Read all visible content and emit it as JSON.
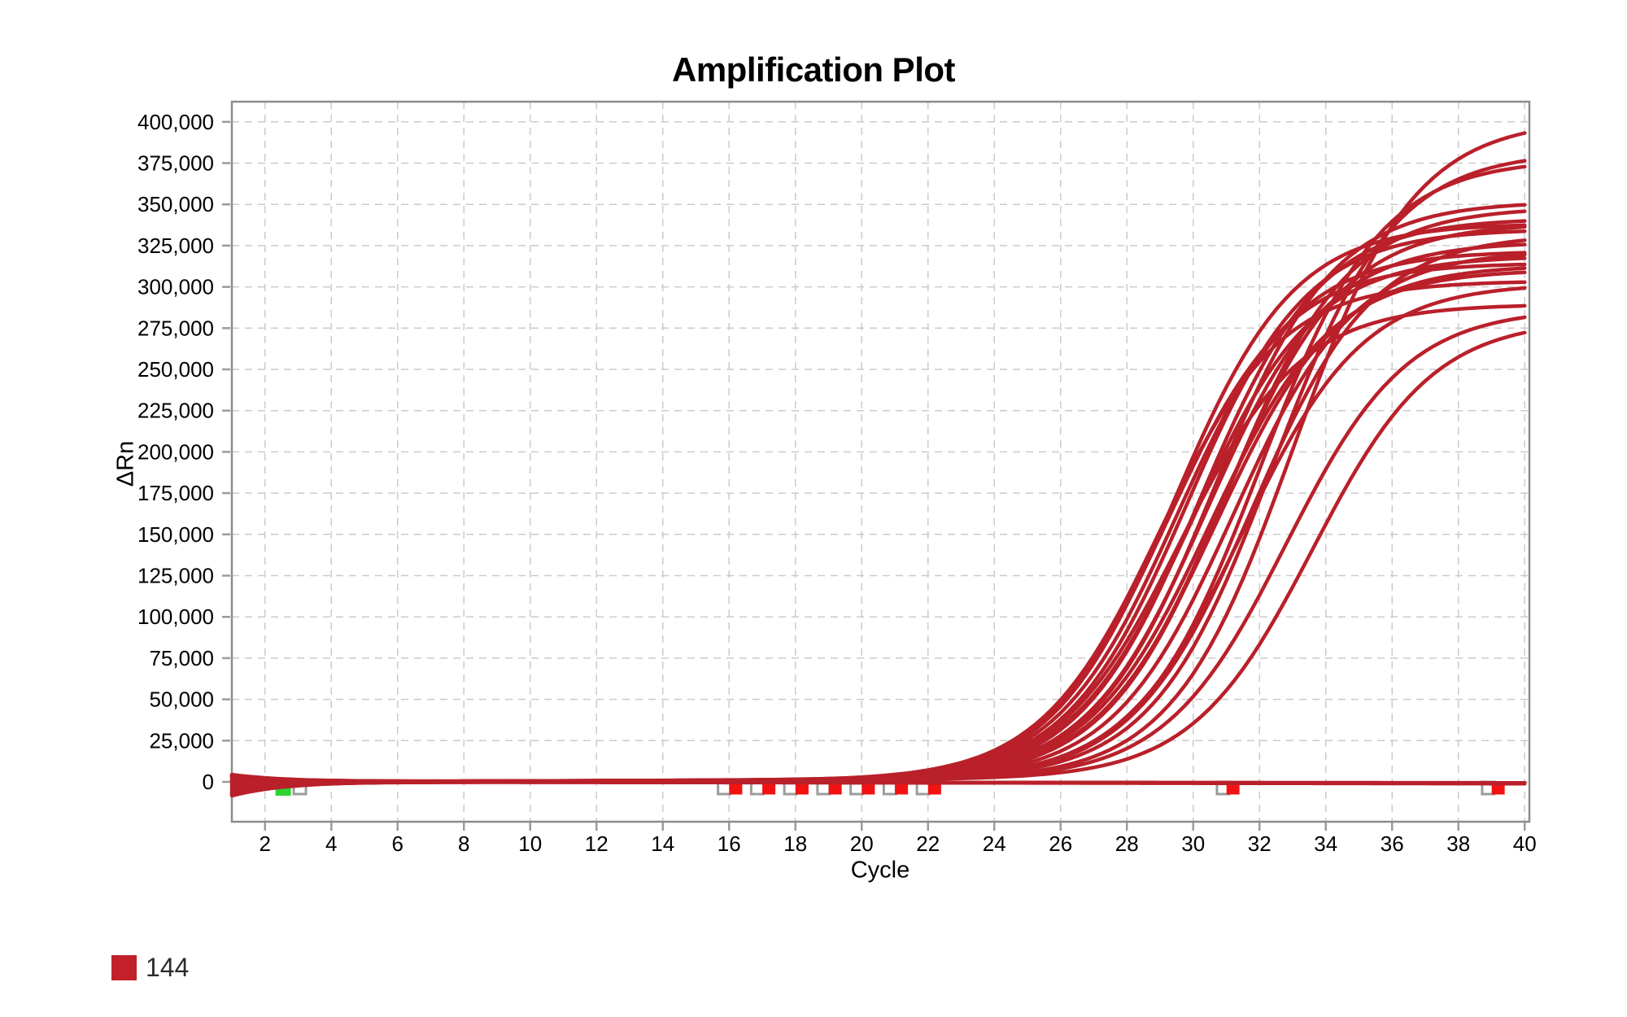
{
  "title": "Amplification Plot",
  "chart_data": {
    "type": "line",
    "title": "Amplification Plot",
    "xlabel": "Cycle",
    "ylabel": "ΔRn",
    "xlim": [
      1,
      40
    ],
    "ylim": [
      -24000,
      412000
    ],
    "x_tick_labels": [
      2,
      4,
      6,
      8,
      10,
      12,
      14,
      16,
      18,
      20,
      22,
      24,
      26,
      28,
      30,
      32,
      34,
      36,
      38,
      40
    ],
    "y_ticks": [
      {
        "v": 0,
        "label": "0"
      },
      {
        "v": 25000,
        "label": "25,000"
      },
      {
        "v": 50000,
        "label": "50,000"
      },
      {
        "v": 75000,
        "label": "75,000"
      },
      {
        "v": 100000,
        "label": "100,000"
      },
      {
        "v": 125000,
        "label": "125,000"
      },
      {
        "v": 150000,
        "label": "150,000"
      },
      {
        "v": 175000,
        "label": "175,000"
      },
      {
        "v": 200000,
        "label": "200,000"
      },
      {
        "v": 225000,
        "label": "225,000"
      },
      {
        "v": 250000,
        "label": "250,000"
      },
      {
        "v": 275000,
        "label": "275,000"
      },
      {
        "v": 300000,
        "label": "300,000"
      },
      {
        "v": 325000,
        "label": "325,000"
      },
      {
        "v": 350000,
        "label": "350,000"
      },
      {
        "v": 375000,
        "label": "375,000"
      },
      {
        "v": 400000,
        "label": "400,000"
      }
    ],
    "grid": "dashed-both-axes",
    "legend": {
      "label": "144",
      "color": "#C2202A",
      "position": "bottom-left"
    },
    "colors": {
      "curve": "#B9202A",
      "grid": "#cbcbcb",
      "border": "#8c8c8c",
      "tick": "#9b9b9b",
      "marker_red": "#F31212",
      "marker_green": "#2ED32E",
      "marker_gray_stroke": "#9b9b9b",
      "marker_gray_fill": "#ffffff"
    },
    "curve_model": "value(cycle) = start*exp(-(cycle-1)/1.6) + drift*(cycle-1) + plateau/(1+exp(-k*(cycle-ct)))",
    "k": 0.55,
    "series": [
      {
        "ct": 33.0,
        "plateau": 400000,
        "start": -8400,
        "drift": 40
      },
      {
        "ct": 32.4,
        "plateau": 380000,
        "start": 3800,
        "drift": 55
      },
      {
        "ct": 32.0,
        "plateau": 375000,
        "start": -6000,
        "drift": 62
      },
      {
        "ct": 30.6,
        "plateau": 350000,
        "start": 2600,
        "drift": 45
      },
      {
        "ct": 31.0,
        "plateau": 346000,
        "start": -4600,
        "drift": 58
      },
      {
        "ct": 30.2,
        "plateau": 340000,
        "start": 1400,
        "drift": 38
      },
      {
        "ct": 30.9,
        "plateau": 336000,
        "start": -3000,
        "drift": 66
      },
      {
        "ct": 29.8,
        "plateau": 333000,
        "start": 4400,
        "drift": 50
      },
      {
        "ct": 29.4,
        "plateau": 337000,
        "start": -7600,
        "drift": 35
      },
      {
        "ct": 30.4,
        "plateau": 325000,
        "start": 200,
        "drift": 60
      },
      {
        "ct": 29.5,
        "plateau": 320000,
        "start": -2000,
        "drift": 44
      },
      {
        "ct": 31.2,
        "plateau": 320000,
        "start": 3200,
        "drift": 52
      },
      {
        "ct": 30.0,
        "plateau": 316000,
        "start": -5200,
        "drift": 68
      },
      {
        "ct": 29.2,
        "plateau": 313000,
        "start": 1000,
        "drift": 36
      },
      {
        "ct": 30.7,
        "plateau": 311000,
        "start": -1400,
        "drift": 56
      },
      {
        "ct": 31.8,
        "plateau": 330000,
        "start": 2000,
        "drift": 47
      },
      {
        "ct": 30.5,
        "plateau": 308000,
        "start": -6800,
        "drift": 63
      },
      {
        "ct": 29.0,
        "plateau": 302000,
        "start": 600,
        "drift": 41
      },
      {
        "ct": 31.5,
        "plateau": 300000,
        "start": -3800,
        "drift": 53
      },
      {
        "ct": 29.6,
        "plateau": 288000,
        "start": 2900,
        "drift": 37
      },
      {
        "ct": 32.8,
        "plateau": 285000,
        "start": -1000,
        "drift": 48
      },
      {
        "ct": 33.6,
        "plateau": 278000,
        "start": 4100,
        "drift": 59
      }
    ],
    "flat_series": [
      {
        "ct": null,
        "plateau": 0,
        "start": 3500,
        "drift": -15
      },
      {
        "ct": null,
        "plateau": 0,
        "start": -6500,
        "drift": -28
      }
    ],
    "markers": {
      "value": -3700,
      "green_square": {
        "cycle": 2.55,
        "size": 19
      },
      "gray_open_squares": {
        "size": 15,
        "cycles": [
          3.05,
          15.85,
          16.85,
          17.85,
          18.85,
          19.85,
          20.85,
          21.85,
          30.9,
          38.9
        ]
      },
      "red_squares": {
        "size": 16,
        "cycles": [
          16.2,
          17.2,
          18.2,
          19.2,
          20.2,
          21.2,
          22.2,
          31.2,
          39.2
        ]
      }
    }
  }
}
